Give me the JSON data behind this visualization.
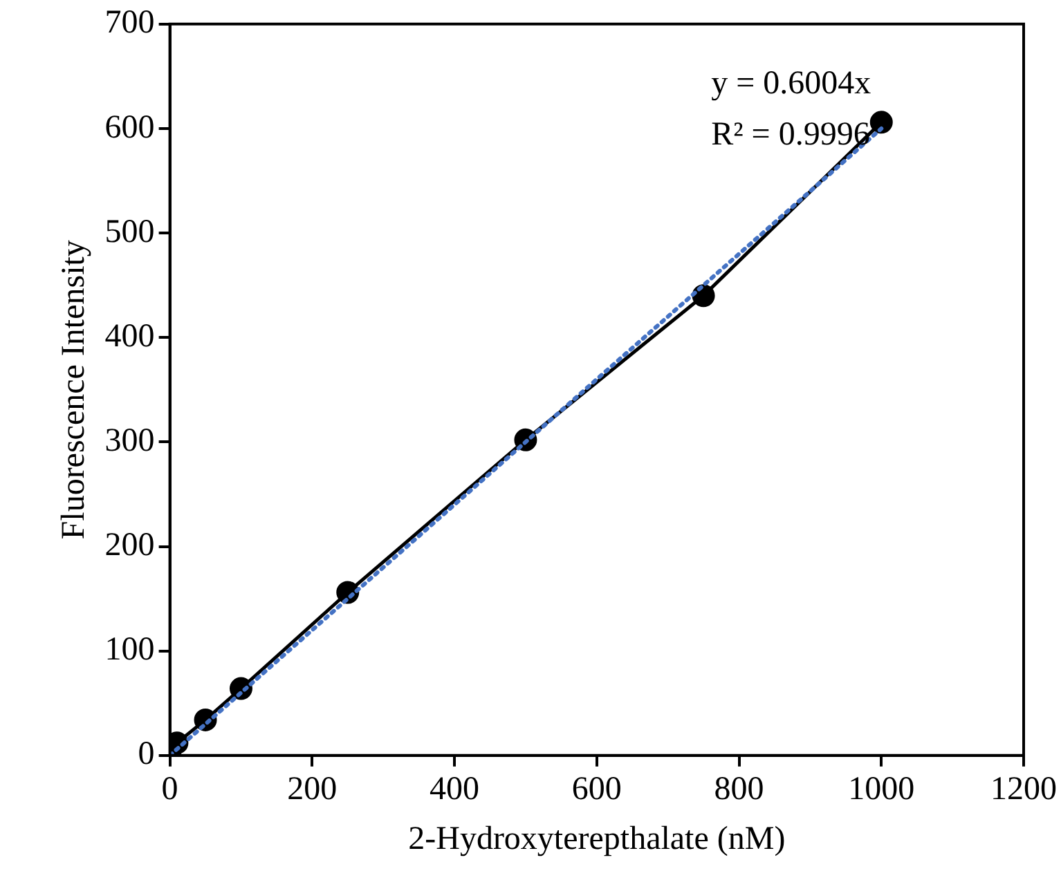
{
  "chart_data": {
    "type": "scatter",
    "xlabel": "2-Hydroxyterepthalate (nM)",
    "ylabel": "Fluorescence Intensity",
    "xlim": [
      0,
      1200
    ],
    "xticks": [
      0,
      200,
      400,
      600,
      800,
      1000,
      1200
    ],
    "ylim": [
      0,
      700
    ],
    "yticks": [
      0,
      100,
      200,
      300,
      400,
      500,
      600,
      700
    ],
    "grid": false,
    "legend": false,
    "series": [
      {
        "type": "line",
        "color": "#000000",
        "x": [
          0,
          10,
          50,
          100,
          250,
          500,
          750,
          1000
        ],
        "values": [
          2,
          12,
          34,
          64,
          156,
          302,
          440,
          606
        ],
        "marker": "circle",
        "line_style": "solid"
      },
      {
        "type": "line",
        "color": "#4472c4",
        "x": [
          0,
          1000
        ],
        "values": [
          0,
          600
        ],
        "marker": "none",
        "line_style": "dotted"
      }
    ],
    "annotations": [
      "y = 0.6004x",
      "R² = 0.9996"
    ]
  }
}
